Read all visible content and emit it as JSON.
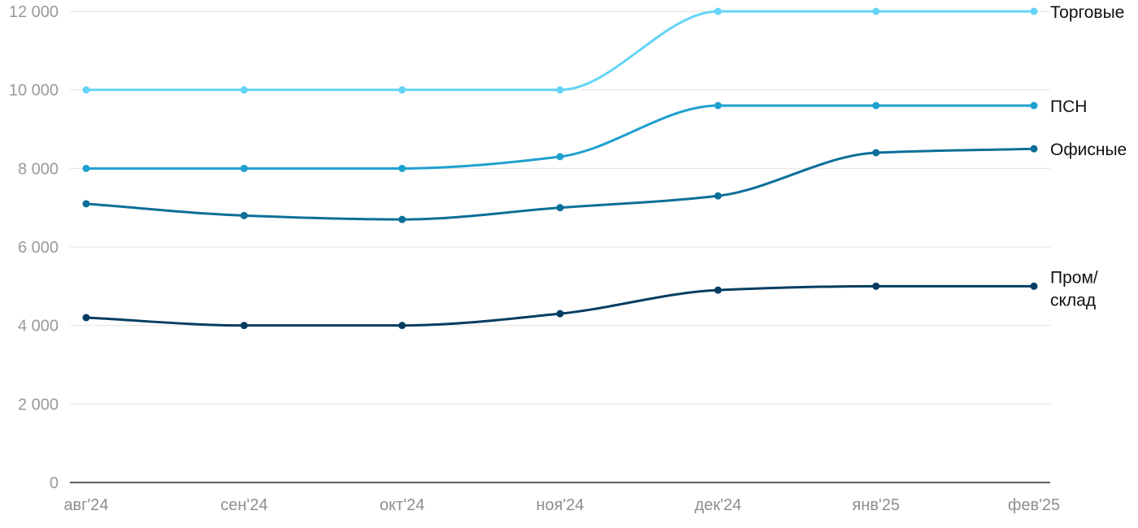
{
  "chart_data": {
    "type": "line",
    "title": "",
    "xlabel": "",
    "ylabel": "",
    "categories": [
      "авг'24",
      "сен'24",
      "окт'24",
      "ноя'24",
      "дек'24",
      "янв'25",
      "фев'25"
    ],
    "ylim": [
      0,
      12000
    ],
    "yticks": [
      0,
      2000,
      4000,
      6000,
      8000,
      10000,
      12000
    ],
    "ytick_labels": [
      "0",
      "2 000",
      "4 000",
      "6 000",
      "8 000",
      "10 000",
      "12 000"
    ],
    "grid": "horizontal",
    "legend": "none (inline labels at line ends)",
    "series": [
      {
        "name": "Торговые",
        "label_lines": [
          "Торговые"
        ],
        "color": "#64d4f7",
        "values": [
          10000,
          10000,
          10000,
          10000,
          12000,
          12000,
          12000
        ]
      },
      {
        "name": "ПСН",
        "label_lines": [
          "ПСН"
        ],
        "color": "#1ea0cf",
        "values": [
          8000,
          8000,
          8000,
          8300,
          9600,
          9600,
          9600
        ]
      },
      {
        "name": "Офисные",
        "label_lines": [
          "Офисные"
        ],
        "color": "#0c6f98",
        "values": [
          7100,
          6800,
          6700,
          7000,
          7300,
          8400,
          8500
        ]
      },
      {
        "name": "Пром/склад",
        "label_lines": [
          "Пром/",
          "склад"
        ],
        "color": "#053c62",
        "values": [
          4200,
          4000,
          4000,
          4300,
          4900,
          5000,
          5000
        ]
      }
    ]
  }
}
